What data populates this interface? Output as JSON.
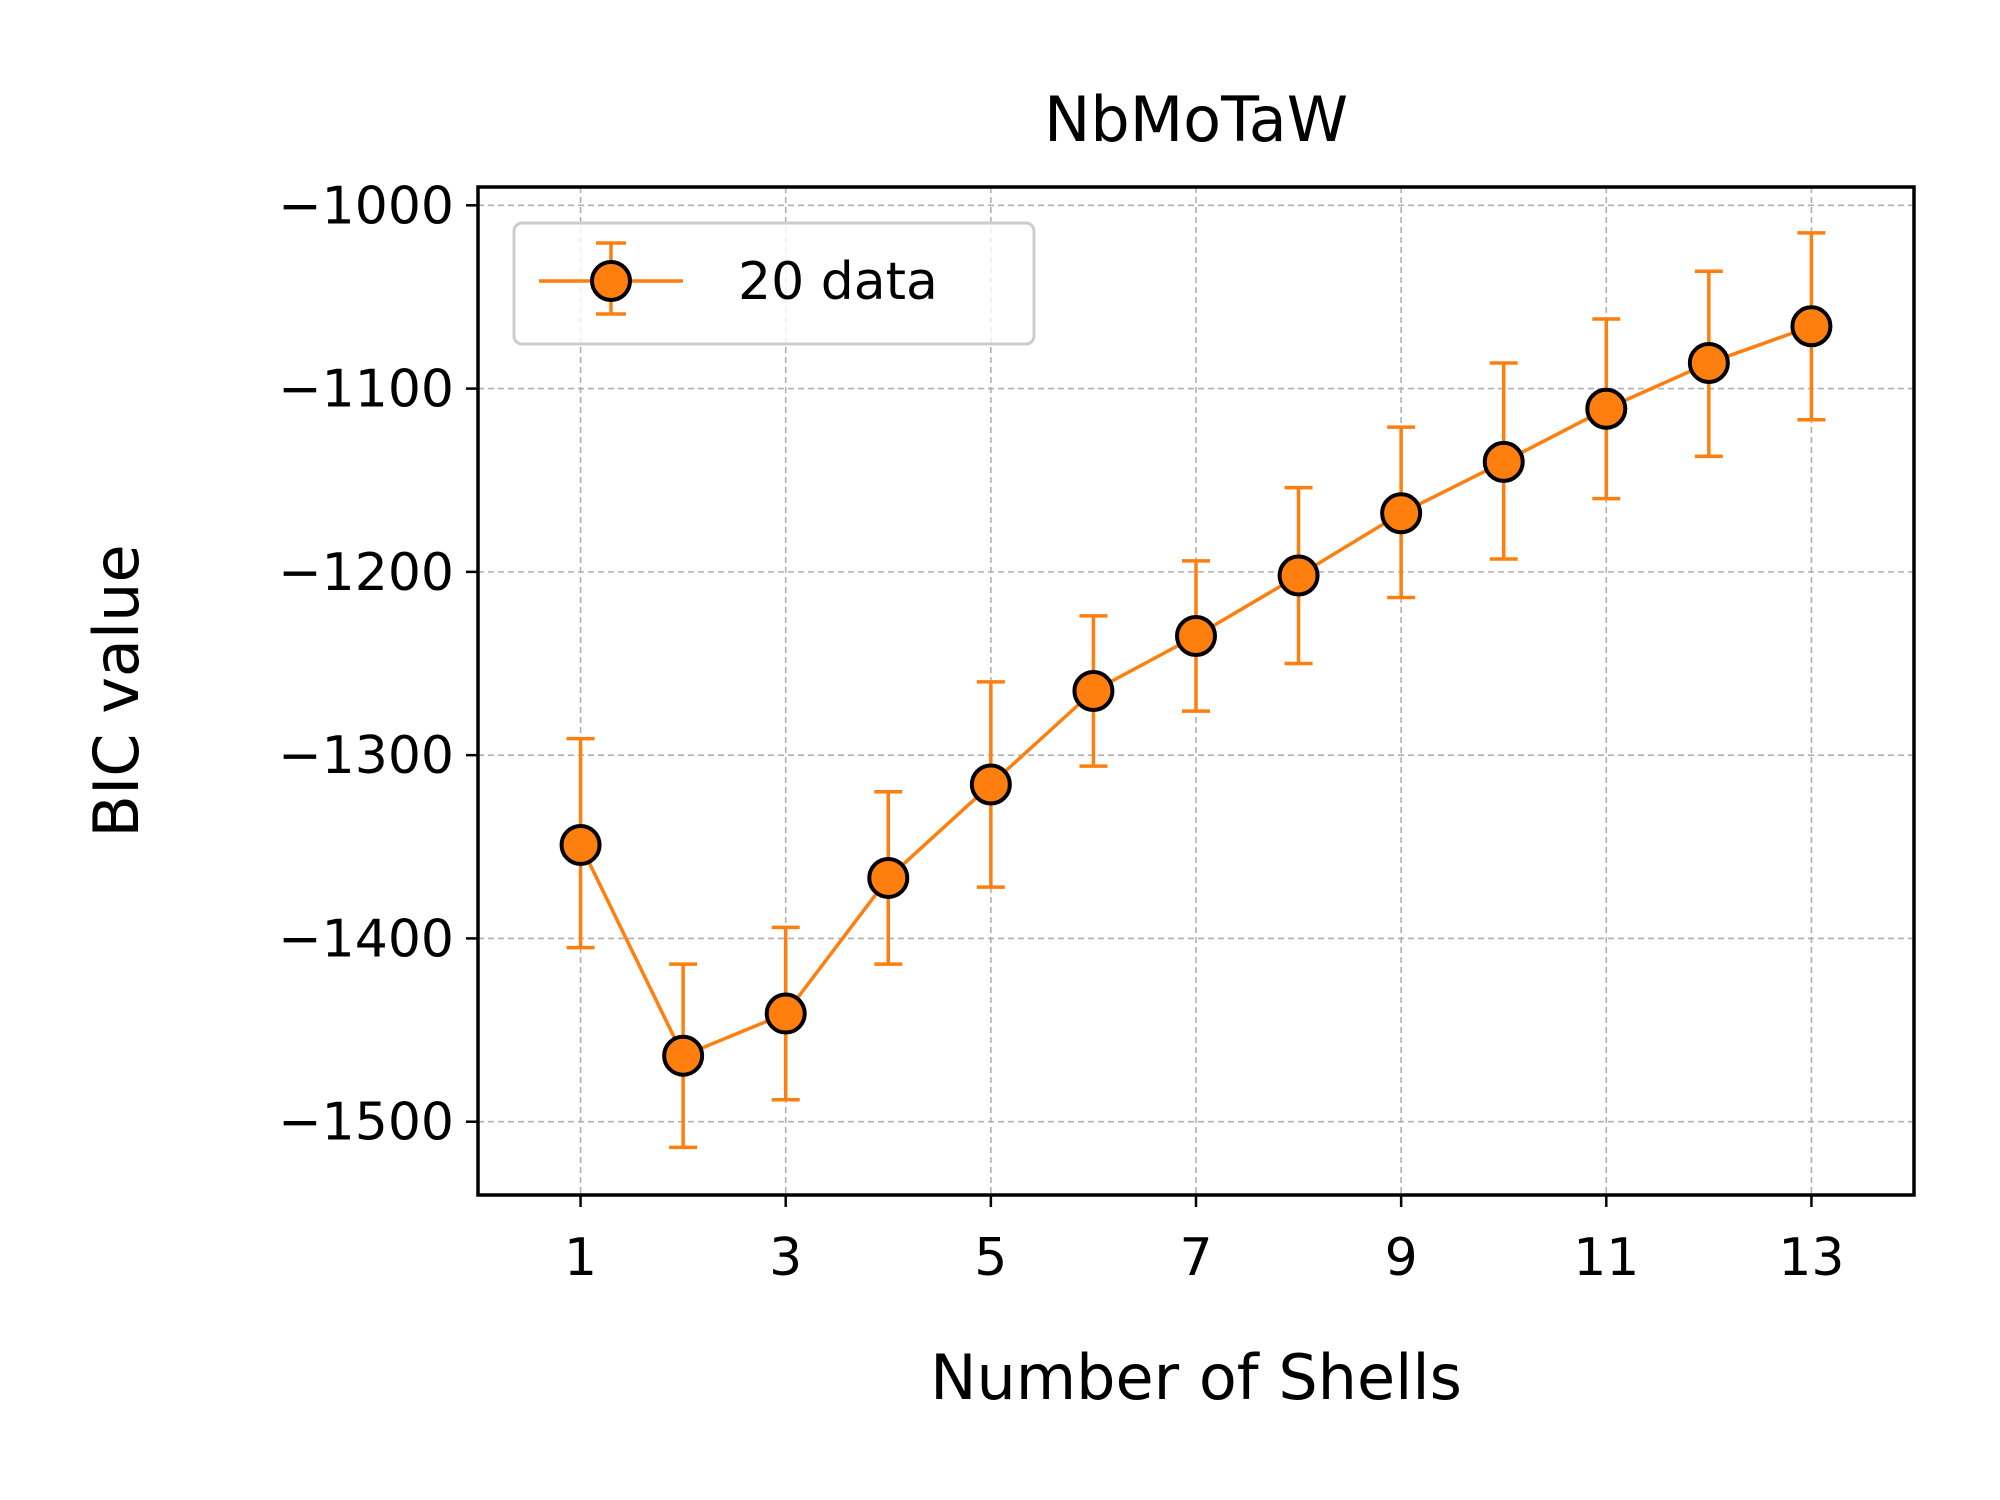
{
  "chart_data": {
    "type": "line",
    "title": "NbMoTaW",
    "xlabel": "Number of Shells",
    "ylabel": "BIC value",
    "xlim": [
      0,
      14
    ],
    "ylim": [
      -1540,
      -990
    ],
    "xticks": [
      1,
      3,
      5,
      7,
      9,
      11,
      13
    ],
    "xtick_labels": [
      "1",
      "3",
      "5",
      "7",
      "9",
      "11",
      "13"
    ],
    "yticks": [
      -1000,
      -1100,
      -1200,
      -1300,
      -1400,
      -1500
    ],
    "ytick_labels": [
      "−1000",
      "−1100",
      "−1200",
      "−1300",
      "−1400",
      "−1500"
    ],
    "grid": true,
    "legend_position": "upper-left",
    "series": [
      {
        "name": "20 data",
        "color": "#ff7f0e",
        "marker_edge_color": "#000000",
        "x": [
          1,
          2,
          3,
          4,
          5,
          6,
          7,
          8,
          9,
          10,
          11,
          12,
          13
        ],
        "y": [
          -1349,
          -1464,
          -1441,
          -1367,
          -1316,
          -1265,
          -1235,
          -1202,
          -1168,
          -1140,
          -1111,
          -1086,
          -1066
        ],
        "err_low": [
          -1405,
          -1514,
          -1488,
          -1414,
          -1372,
          -1306,
          -1276,
          -1250,
          -1214,
          -1193,
          -1160,
          -1137,
          -1117
        ],
        "err_high": [
          -1291,
          -1414,
          -1394,
          -1320,
          -1260,
          -1224,
          -1194,
          -1154,
          -1121,
          -1086,
          -1062,
          -1036,
          -1015
        ]
      }
    ]
  }
}
